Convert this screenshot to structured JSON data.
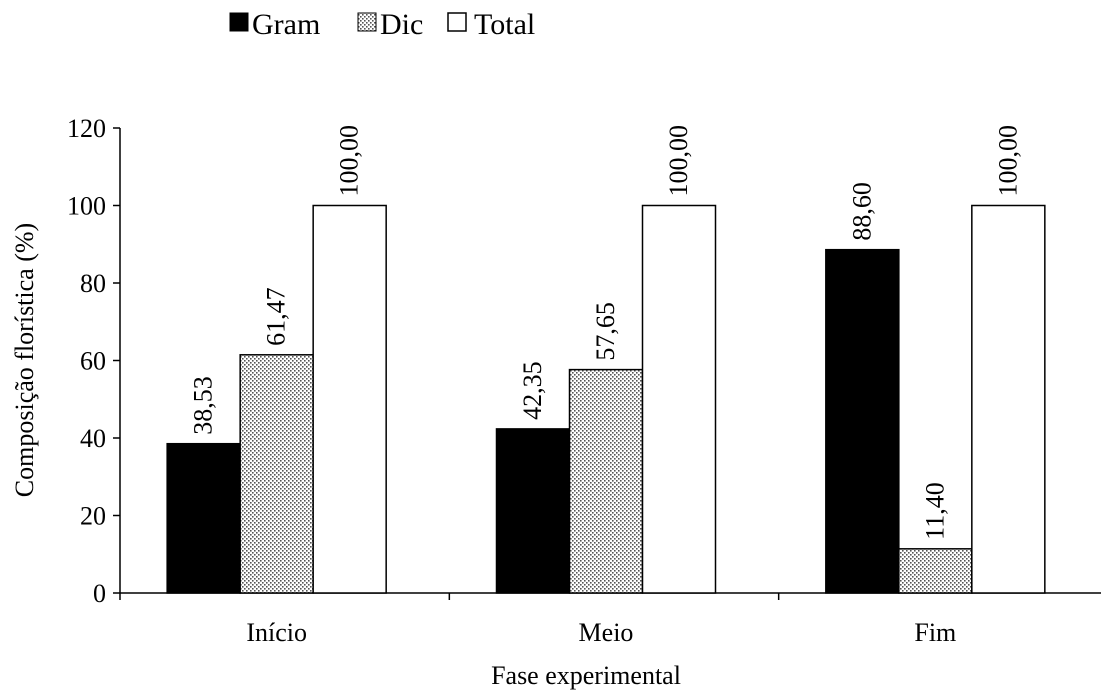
{
  "chart_data": {
    "type": "bar",
    "title": "",
    "xlabel": "Fase experimental",
    "ylabel": "Composição florística (%)",
    "categories": [
      "Início",
      "Meio",
      "Fim"
    ],
    "ylim": [
      0,
      120
    ],
    "yticks": [
      0,
      20,
      40,
      60,
      80,
      100,
      120
    ],
    "grid": false,
    "legend_position": "top",
    "series": [
      {
        "name": "Gram",
        "values": [
          38.53,
          42.35,
          88.6
        ],
        "labels": [
          "38,53",
          "42,35",
          "88,60"
        ],
        "fill": "solid-black"
      },
      {
        "name": "Dic",
        "values": [
          61.47,
          57.65,
          11.4
        ],
        "labels": [
          "61,47",
          "57,65",
          "11,40"
        ],
        "fill": "dotted-gray"
      },
      {
        "name": "Total",
        "values": [
          100,
          100,
          100
        ],
        "labels": [
          "100,00",
          "100,00",
          "100,00"
        ],
        "fill": "white"
      }
    ]
  }
}
